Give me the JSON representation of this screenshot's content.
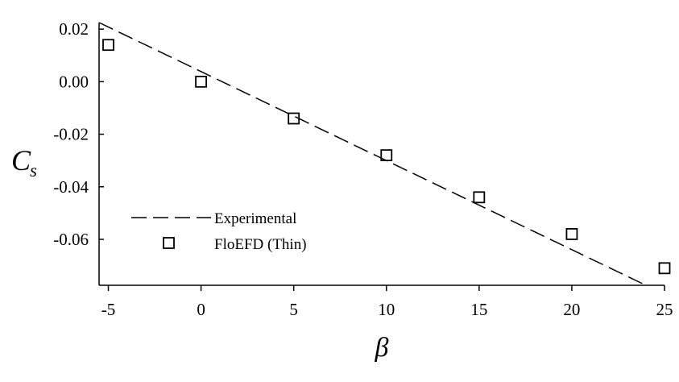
{
  "chart_data": {
    "type": "scatter",
    "xlabel": "β",
    "ylabel": "C",
    "ylabel_sub": "s",
    "xlim": [
      -5.5,
      25
    ],
    "ylim": [
      -0.0775,
      0.0225
    ],
    "xticks": [
      -5,
      0,
      5,
      10,
      15,
      20,
      25
    ],
    "xtick_labels": [
      "-5",
      "0",
      "5",
      "10",
      "15",
      "20",
      "25"
    ],
    "yticks": [
      0.02,
      0.0,
      -0.02,
      -0.04,
      -0.06
    ],
    "ytick_labels": [
      "0.02",
      "0.00",
      "-0.02",
      "-0.04",
      "-0.06"
    ],
    "grid": false,
    "legend_position": "lower-left",
    "series": [
      {
        "name": "Experimental",
        "style": "dashed-line",
        "color": "#000000",
        "x": [
          -5.5,
          24
        ],
        "y": [
          0.0225,
          -0.0775
        ]
      },
      {
        "name": "FloEFD (Thin)",
        "style": "open-square-marker",
        "color": "#000000",
        "x": [
          -5,
          0,
          5,
          10,
          15,
          20,
          25
        ],
        "y": [
          0.014,
          0.0,
          -0.014,
          -0.028,
          -0.044,
          -0.058,
          -0.071
        ]
      }
    ]
  }
}
